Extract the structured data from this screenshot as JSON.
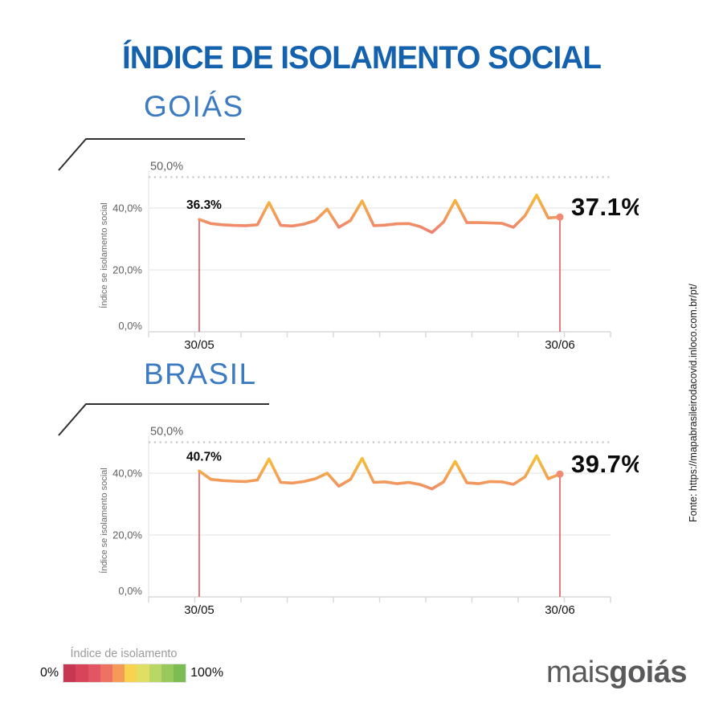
{
  "page": {
    "title": "ÍNDICE DE ISOLAMENTO SOCIAL",
    "source_note": "Fonte: https://mapabrasileirodacovid.inloco.com.br/pt/"
  },
  "brand": {
    "part1": "mais",
    "part2": "goiás"
  },
  "legend": {
    "title": "Índice de isolamento",
    "min_label": "0%",
    "max_label": "100%",
    "gradient_colors": [
      "#c73652",
      "#d8455b",
      "#e25562",
      "#ed7264",
      "#f49b59",
      "#f8d34f",
      "#dfdf63",
      "#b8d765",
      "#97c95d",
      "#7cbd53"
    ]
  },
  "colors": {
    "title_blue": "#1462ae",
    "section_blue": "#3c7ac2",
    "line_gradient_top": "#f7c233",
    "line_gradient_bottom": "#ee8272",
    "marker_red": "#e2585f",
    "end_dot": "#f08a72",
    "grid_solid": "#ececec",
    "axis_line": "#d9d9d9",
    "dotted_line": "#c6c6c6",
    "tick_label": "#5f5f5f",
    "date_label": "#111111",
    "value_label": "#0b0b0b",
    "ylabel_gray": "#6b6b6b",
    "deco_line": "#2f2f2f"
  },
  "chart_data": [
    {
      "type": "line",
      "title": "GOIÁS",
      "ylabel": "Índice se isolamento social",
      "ylim": [
        0,
        50
      ],
      "x_start_label": "30/05",
      "x_end_label": "30/06",
      "start_value_label": "36.3%",
      "end_value_label": "37.1%",
      "gridlines": [
        {
          "label": "50,0%",
          "value": 50,
          "style": "dotted"
        },
        {
          "label": "40,0%",
          "value": 40,
          "style": "solid"
        },
        {
          "label": "20,0%",
          "value": 20,
          "style": "solid"
        },
        {
          "label": "0,0%",
          "value": 0,
          "style": "axis"
        }
      ],
      "values": [
        36.3,
        35.0,
        34.6,
        34.4,
        34.3,
        34.6,
        41.8,
        34.4,
        34.2,
        34.8,
        36.0,
        39.7,
        33.8,
        36.0,
        42.3,
        34.3,
        34.5,
        34.9,
        35.0,
        34.0,
        32.1,
        35.5,
        42.5,
        35.3,
        35.3,
        35.2,
        35.1,
        33.8,
        37.5,
        44.2,
        36.8,
        37.1
      ]
    },
    {
      "type": "line",
      "title": "BRASIL",
      "ylabel": "Índice se isolamento social",
      "ylim": [
        0,
        50
      ],
      "x_start_label": "30/05",
      "x_end_label": "30/06",
      "start_value_label": "40.7%",
      "end_value_label": "39.7%",
      "gridlines": [
        {
          "label": "50,0%",
          "value": 50,
          "style": "dotted"
        },
        {
          "label": "40,0%",
          "value": 40,
          "style": "solid"
        },
        {
          "label": "20,0%",
          "value": 20,
          "style": "solid"
        },
        {
          "label": "0,0%",
          "value": 0,
          "style": "axis"
        }
      ],
      "values": [
        40.7,
        38.0,
        37.6,
        37.4,
        37.3,
        37.8,
        44.6,
        37.0,
        36.8,
        37.3,
        38.2,
        40.0,
        35.8,
        38.0,
        44.8,
        37.0,
        37.2,
        36.6,
        37.0,
        36.3,
        34.9,
        37.2,
        43.8,
        36.9,
        36.6,
        37.3,
        37.2,
        36.4,
        38.8,
        45.6,
        38.2,
        39.7
      ]
    }
  ]
}
